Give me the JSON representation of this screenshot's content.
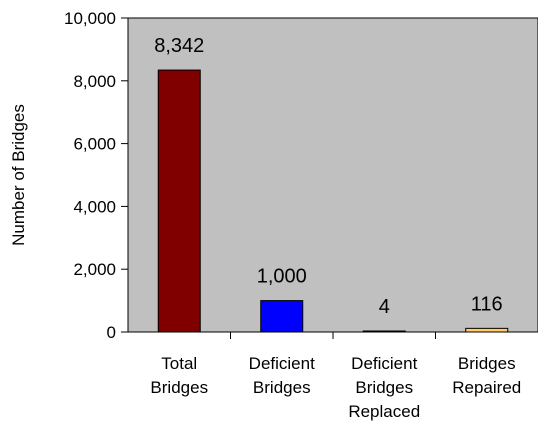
{
  "chart_data": {
    "type": "bar",
    "title": "",
    "xlabel": "",
    "ylabel": "Number of Bridges",
    "ylim": [
      0,
      10000
    ],
    "yticks": [
      "10,000",
      "8,000",
      "6,000",
      "4,000",
      "2,000",
      "0"
    ],
    "ytick_values": [
      10000,
      8000,
      6000,
      4000,
      2000,
      0
    ],
    "categories": [
      [
        "Total",
        "Bridges"
      ],
      [
        "Deficient",
        "Bridges"
      ],
      [
        "Deficient",
        "Bridges",
        "Replaced"
      ],
      [
        "Bridges",
        "Repaired"
      ]
    ],
    "values": [
      8342,
      1000,
      4,
      116
    ],
    "data_labels": [
      "8,342",
      "1,000",
      "4",
      "116"
    ],
    "colors": [
      "#800000",
      "#0000FF",
      "#9999FF",
      "#FFCC66"
    ],
    "plot_background": "#C0C0C0",
    "grid": false,
    "legend": "none"
  }
}
